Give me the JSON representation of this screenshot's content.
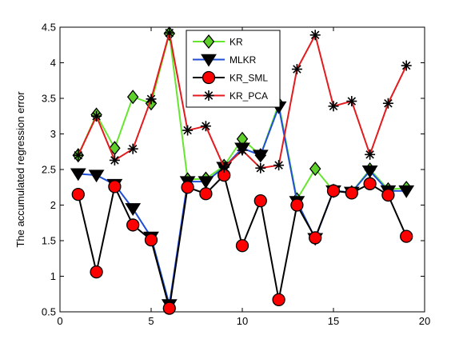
{
  "chart_data": {
    "type": "line",
    "title": "",
    "xlabel": "",
    "ylabel": "The accumulated regression error",
    "xlim": [
      0,
      20
    ],
    "ylim": [
      0.5,
      4.5
    ],
    "xticks": [
      0,
      5,
      10,
      15,
      20
    ],
    "yticks": [
      0.5,
      1,
      1.5,
      2,
      2.5,
      3,
      3.5,
      4,
      4.5
    ],
    "xtick_labels": [
      "0",
      "5",
      "10",
      "15",
      "20"
    ],
    "ytick_labels": [
      "0.5",
      "1",
      "1.5",
      "2",
      "2.5",
      "3",
      "3.5",
      "4",
      "4.5"
    ],
    "grid": false,
    "legend_position": "top-center",
    "x": [
      1,
      2,
      3,
      4,
      5,
      6,
      7,
      8,
      9,
      10,
      11,
      12,
      13,
      14,
      15,
      16,
      17,
      18,
      19
    ],
    "series": [
      {
        "name": "KR",
        "color": "#66e62e",
        "marker": "diamond",
        "marker_fill": "#5fcf2b",
        "values": [
          2.7,
          3.27,
          2.8,
          3.52,
          3.43,
          4.41,
          2.36,
          2.37,
          2.55,
          2.93,
          2.7,
          3.42,
          2.08,
          2.51,
          2.2,
          2.18,
          2.5,
          2.22,
          2.24
        ]
      },
      {
        "name": "MLKR",
        "color": "#1f4fd6",
        "marker": "triangle-down",
        "marker_fill": "#000000",
        "values": [
          2.44,
          2.42,
          2.29,
          1.95,
          1.55,
          0.6,
          2.33,
          2.33,
          2.53,
          2.8,
          2.7,
          3.38,
          2.05,
          1.53,
          2.2,
          2.18,
          2.48,
          2.2,
          2.2
        ]
      },
      {
        "name": "KR_SML",
        "color": "#000000",
        "marker": "circle",
        "marker_fill": "#ff0000",
        "values": [
          2.15,
          1.06,
          2.26,
          1.72,
          1.51,
          0.55,
          2.25,
          2.16,
          2.42,
          1.43,
          2.06,
          0.67,
          2.0,
          1.54,
          2.2,
          2.17,
          2.3,
          2.14,
          1.56
        ]
      },
      {
        "name": "KR_PCA",
        "color": "#e41a1c",
        "marker": "asterisk",
        "marker_fill": "#000000",
        "values": [
          2.7,
          3.25,
          2.63,
          2.79,
          3.49,
          4.42,
          3.05,
          3.11,
          2.53,
          2.77,
          2.52,
          2.56,
          3.91,
          4.39,
          3.39,
          3.46,
          2.71,
          3.43,
          3.96
        ]
      }
    ]
  }
}
